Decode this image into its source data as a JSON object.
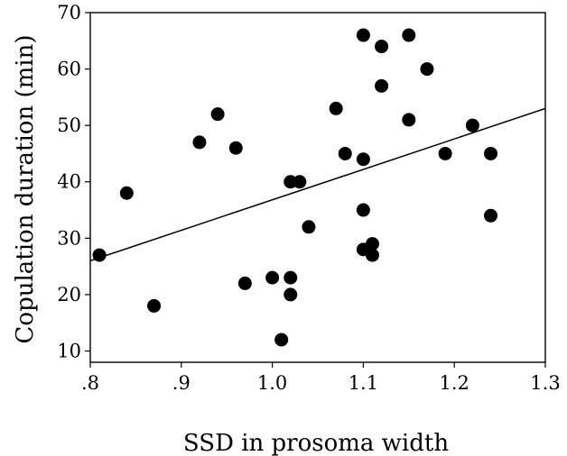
{
  "chart_data": {
    "type": "scatter",
    "title": "",
    "xlabel": "SSD in prosoma width",
    "ylabel": "Copulation duration (min)",
    "xlim": [
      0.8,
      1.3
    ],
    "ylim": [
      8,
      70
    ],
    "x_ticks": [
      0.8,
      0.9,
      1.0,
      1.1,
      1.2,
      1.3
    ],
    "x_tick_labels": [
      ".8",
      ".9",
      "1.0",
      "1.1",
      "1.2",
      "1.3"
    ],
    "y_ticks": [
      10,
      20,
      30,
      40,
      50,
      60,
      70
    ],
    "y_tick_labels": [
      "10",
      "20",
      "30",
      "40",
      "50",
      "60",
      "70"
    ],
    "grid": false,
    "legend": "none",
    "marker_color": "#000000",
    "points": [
      {
        "x": 0.81,
        "y": 27
      },
      {
        "x": 0.84,
        "y": 38
      },
      {
        "x": 0.87,
        "y": 18
      },
      {
        "x": 0.92,
        "y": 47
      },
      {
        "x": 0.94,
        "y": 52
      },
      {
        "x": 0.96,
        "y": 46
      },
      {
        "x": 0.97,
        "y": 22
      },
      {
        "x": 1.0,
        "y": 23
      },
      {
        "x": 1.01,
        "y": 12
      },
      {
        "x": 1.02,
        "y": 23
      },
      {
        "x": 1.02,
        "y": 20
      },
      {
        "x": 1.02,
        "y": 40
      },
      {
        "x": 1.03,
        "y": 40
      },
      {
        "x": 1.04,
        "y": 32
      },
      {
        "x": 1.07,
        "y": 53
      },
      {
        "x": 1.08,
        "y": 45
      },
      {
        "x": 1.1,
        "y": 66
      },
      {
        "x": 1.1,
        "y": 44
      },
      {
        "x": 1.1,
        "y": 35
      },
      {
        "x": 1.1,
        "y": 28
      },
      {
        "x": 1.11,
        "y": 29
      },
      {
        "x": 1.11,
        "y": 27
      },
      {
        "x": 1.12,
        "y": 64
      },
      {
        "x": 1.12,
        "y": 57
      },
      {
        "x": 1.15,
        "y": 66
      },
      {
        "x": 1.15,
        "y": 51
      },
      {
        "x": 1.17,
        "y": 60
      },
      {
        "x": 1.19,
        "y": 45
      },
      {
        "x": 1.22,
        "y": 50
      },
      {
        "x": 1.24,
        "y": 45
      },
      {
        "x": 1.24,
        "y": 34
      }
    ],
    "fit_line": {
      "x": [
        0.8,
        1.3
      ],
      "y": [
        26,
        53
      ]
    }
  }
}
